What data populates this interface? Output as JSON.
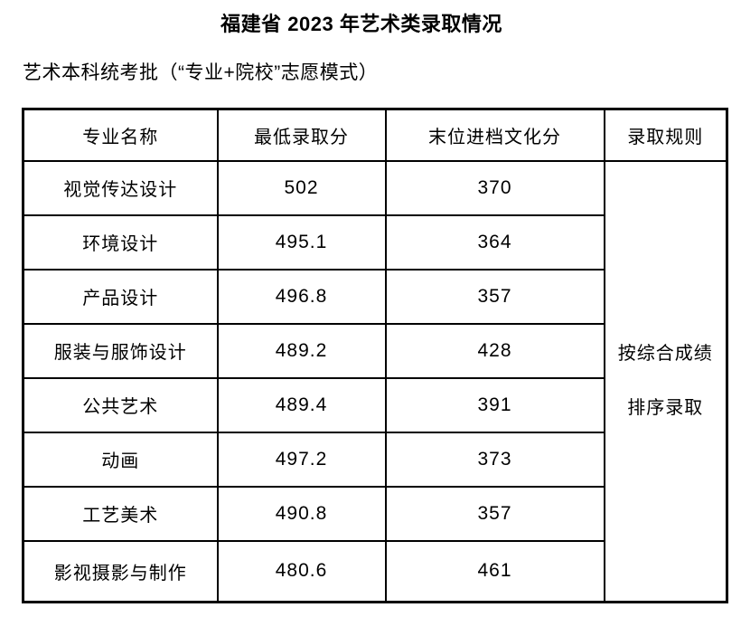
{
  "document": {
    "title": "福建省 2023 年艺术类录取情况",
    "subtitle": "艺术本科统考批（“专业+院校”志愿模式）"
  },
  "table": {
    "headers": {
      "major": "专业名称",
      "min_score": "最低录取分",
      "culture_score": "末位进档文化分",
      "rule": "录取规则"
    },
    "rows": [
      {
        "major": "视觉传达设计",
        "min_score": "502",
        "culture_score": "370"
      },
      {
        "major": "环境设计",
        "min_score": "495.1",
        "culture_score": "364"
      },
      {
        "major": "产品设计",
        "min_score": "496.8",
        "culture_score": "357"
      },
      {
        "major": "服装与服饰设计",
        "min_score": "489.2",
        "culture_score": "428"
      },
      {
        "major": "公共艺术",
        "min_score": "489.4",
        "culture_score": "391"
      },
      {
        "major": "动画",
        "min_score": "497.2",
        "culture_score": "373"
      },
      {
        "major": "工艺美术",
        "min_score": "490.8",
        "culture_score": "357"
      },
      {
        "major": "影视摄影与制作",
        "min_score": "480.6",
        "culture_score": "461"
      }
    ],
    "admission_rule": {
      "line1": "按综合成绩",
      "line2": "排序录取"
    }
  },
  "colors": {
    "text": "#000000",
    "border": "#000000",
    "background": "#ffffff"
  }
}
